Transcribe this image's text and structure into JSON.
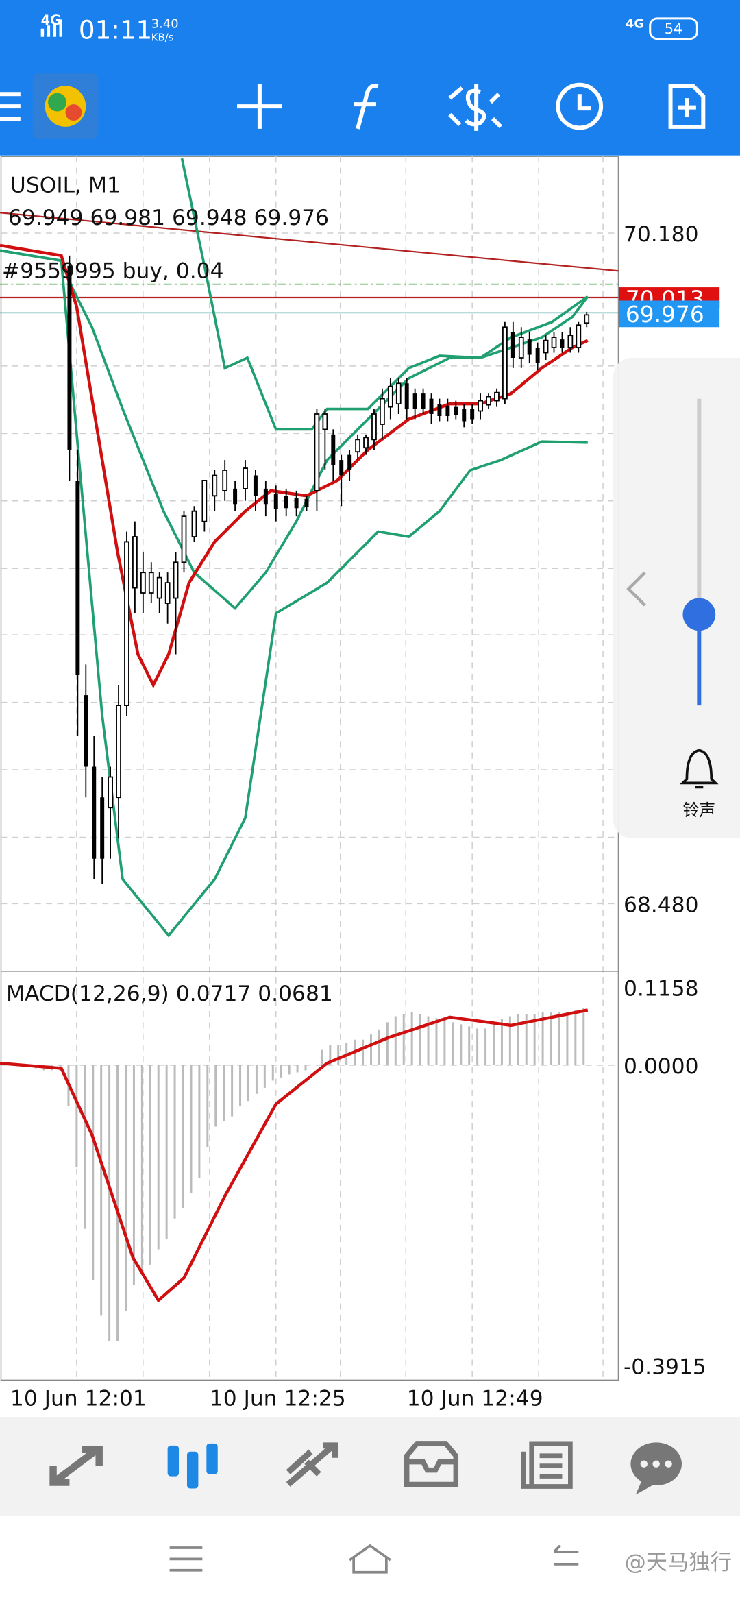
{
  "status_bar": {
    "network": "4G",
    "time": "01:11",
    "speed": "3.40",
    "speed_unit": "KB/s",
    "network2": "4G",
    "battery": "54"
  },
  "chart": {
    "symbol": "USOIL, M1",
    "ohlc": "69.949 69.981 69.948 69.976",
    "order": "#9559995 buy, 0.04",
    "price_labels": [
      "70.180",
      "68.480"
    ],
    "order_price": "70.013",
    "current_price": "69.976",
    "macd_label": "MACD(12,26,9) 0.0717 0.0681",
    "macd_labels": [
      "0.1158",
      "0.0000",
      "-0.3915"
    ],
    "time_labels": [
      "10 Jun 12:01",
      "10 Jun 12:25",
      "10 Jun 12:49"
    ]
  },
  "side_panel": {
    "bell_label": "铃声"
  },
  "watermark": "@天马独行"
}
